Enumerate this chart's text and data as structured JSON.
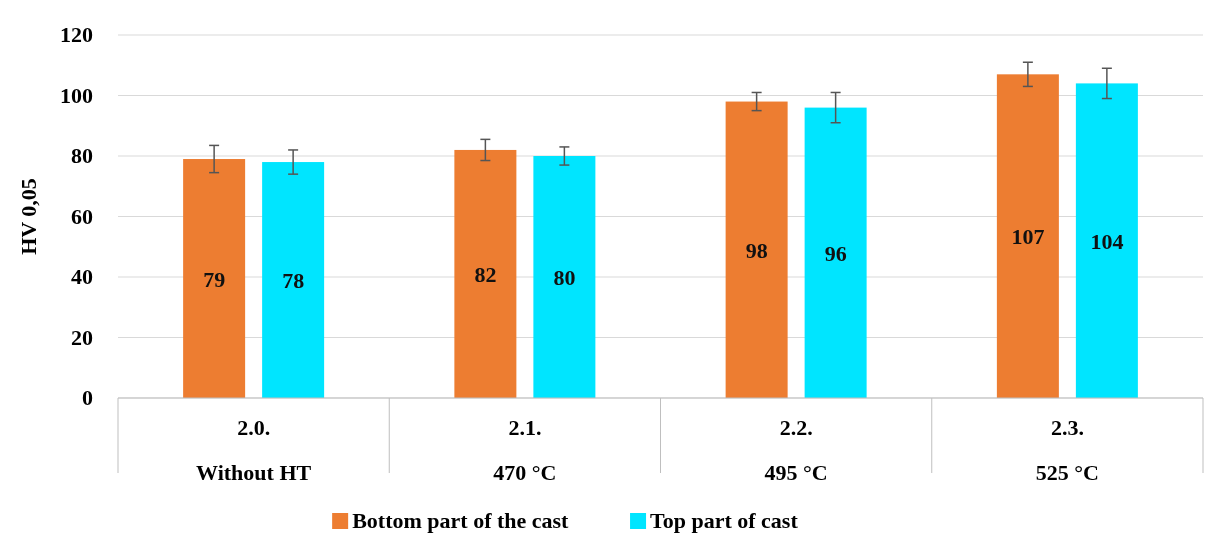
{
  "chart_data": {
    "type": "bar",
    "ylabel": "HV 0,05",
    "categories": [
      "2.0.\nWithout HT",
      "2.1.\n470 °C",
      "2.2.\n495 °C",
      "2.3.\n525 °C"
    ],
    "series": [
      {
        "name": "Bottom part of the cast",
        "color": "#ed7d31",
        "values": [
          79,
          82,
          98,
          107
        ],
        "errors": [
          4.5,
          3.5,
          3,
          4
        ]
      },
      {
        "name": "Top part of cast",
        "color": "#00e5ff",
        "values": [
          78,
          80,
          96,
          104
        ],
        "errors": [
          4,
          3,
          5,
          5
        ]
      }
    ],
    "ylim": [
      0,
      120
    ],
    "yticks": [
      0,
      20,
      40,
      60,
      80,
      100,
      120
    ],
    "grid": "y",
    "data_labels": true,
    "legend": "bottom"
  }
}
